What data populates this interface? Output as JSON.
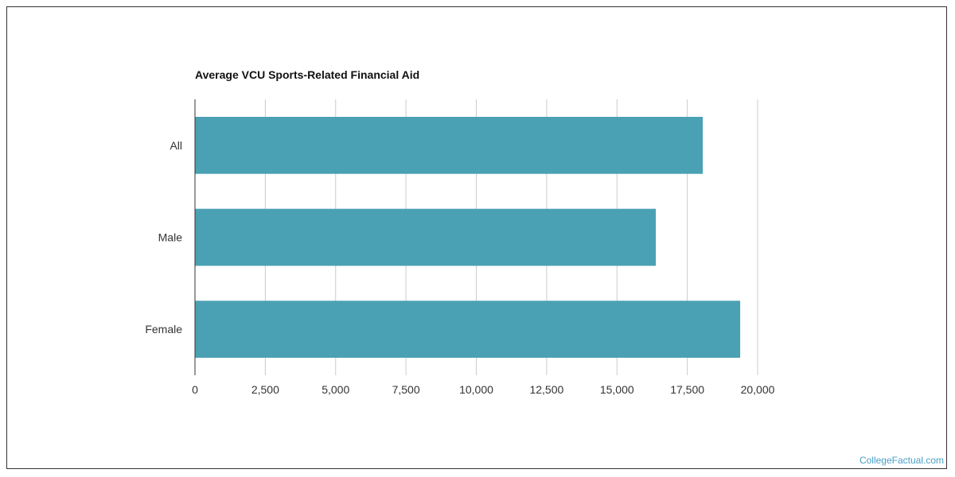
{
  "chart_data": {
    "type": "bar",
    "orientation": "horizontal",
    "title": "Average VCU Sports-Related Financial Aid",
    "xlabel": "",
    "ylabel": "",
    "categories": [
      "All",
      "Male",
      "Female"
    ],
    "values": [
      18050,
      16380,
      19380
    ],
    "xlim": [
      0,
      20000
    ],
    "ticks": [
      0,
      2500,
      5000,
      7500,
      10000,
      12500,
      15000,
      17500,
      20000
    ],
    "tick_labels": [
      "0",
      "2,500",
      "5,000",
      "7,500",
      "10,000",
      "12,500",
      "15,000",
      "17,500",
      "20,000"
    ],
    "bar_color": "#4aa1b3",
    "grid": true,
    "legend": "none"
  },
  "watermark": "CollegeFactual.com"
}
